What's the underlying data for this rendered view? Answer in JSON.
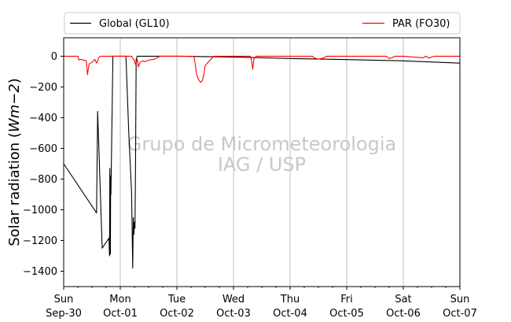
{
  "chart_data": {
    "type": "line",
    "title": "",
    "xlabel": "",
    "ylabel": "Solar radiation (Wm−2)",
    "ylabel_parts": {
      "prefix": "Solar radiation (",
      "math": "Wm−2",
      "suffix": ")"
    },
    "xlim": [
      0,
      7
    ],
    "ylim": [
      -1500,
      120
    ],
    "grid": "vertical-major",
    "legend_placement": "top, above plot",
    "yticks": [
      {
        "value": 0,
        "label": "0"
      },
      {
        "value": -200,
        "label": "−200"
      },
      {
        "value": -400,
        "label": "−400"
      },
      {
        "value": -600,
        "label": "−600"
      },
      {
        "value": -800,
        "label": "−800"
      },
      {
        "value": -1000,
        "label": "−1000"
      },
      {
        "value": -1200,
        "label": "−1200"
      },
      {
        "value": -1400,
        "label": "−1400"
      }
    ],
    "xticks": [
      {
        "value": 0,
        "day": "Sun",
        "date": "Sep-30"
      },
      {
        "value": 1,
        "day": "Mon",
        "date": "Oct-01"
      },
      {
        "value": 2,
        "day": "Tue",
        "date": "Oct-02"
      },
      {
        "value": 3,
        "day": "Wed",
        "date": "Oct-03"
      },
      {
        "value": 4,
        "day": "Thu",
        "date": "Oct-04"
      },
      {
        "value": 5,
        "day": "Fri",
        "date": "Oct-05"
      },
      {
        "value": 6,
        "day": "Sat",
        "date": "Oct-06"
      },
      {
        "value": 7,
        "day": "Sun",
        "date": "Oct-07"
      }
    ],
    "minor_ticks_per_day": 4,
    "watermark": [
      "Grupo de Micrometeorologia",
      "IAG / USP"
    ],
    "series": [
      {
        "name": "Global (GL10)",
        "color": "#000000",
        "points": [
          [
            0.0,
            -700
          ],
          [
            0.58,
            -1020
          ],
          [
            0.6,
            -360
          ],
          [
            0.68,
            -1250
          ],
          [
            0.8,
            -1185
          ],
          [
            0.81,
            -1300
          ],
          [
            0.815,
            -730
          ],
          [
            0.825,
            -1290
          ],
          [
            0.83,
            -780
          ],
          [
            0.835,
            -900
          ],
          [
            0.87,
            0
          ],
          [
            0.9,
            0
          ],
          [
            0.95,
            0
          ],
          [
            1.0,
            0
          ],
          [
            1.1,
            0
          ],
          [
            1.15,
            -500
          ],
          [
            1.2,
            -890
          ],
          [
            1.22,
            -1380
          ],
          [
            1.23,
            -1050
          ],
          [
            1.24,
            -1160
          ],
          [
            1.25,
            -1080
          ],
          [
            1.26,
            -1120
          ],
          [
            1.27,
            -700
          ],
          [
            1.28,
            -20
          ],
          [
            1.3,
            0
          ],
          [
            2.0,
            0
          ],
          [
            3.0,
            -5
          ],
          [
            4.0,
            -15
          ],
          [
            5.0,
            -22
          ],
          [
            6.0,
            -30
          ],
          [
            7.0,
            -45
          ]
        ]
      },
      {
        "name": "PAR (FO30)",
        "color": "#ff0000",
        "points": [
          [
            0.0,
            0
          ],
          [
            0.25,
            0
          ],
          [
            0.27,
            -25
          ],
          [
            0.3,
            -20
          ],
          [
            0.4,
            -30
          ],
          [
            0.42,
            -120
          ],
          [
            0.45,
            -50
          ],
          [
            0.5,
            -40
          ],
          [
            0.55,
            -20
          ],
          [
            0.58,
            -45
          ],
          [
            0.6,
            -30
          ],
          [
            0.62,
            -10
          ],
          [
            0.65,
            0
          ],
          [
            1.0,
            0
          ],
          [
            1.2,
            0
          ],
          [
            1.25,
            -30
          ],
          [
            1.27,
            -55
          ],
          [
            1.3,
            -20
          ],
          [
            1.32,
            -70
          ],
          [
            1.35,
            -40
          ],
          [
            1.4,
            -30
          ],
          [
            1.45,
            -35
          ],
          [
            1.5,
            -25
          ],
          [
            1.6,
            -20
          ],
          [
            1.65,
            -10
          ],
          [
            1.7,
            0
          ],
          [
            2.0,
            0
          ],
          [
            2.3,
            0
          ],
          [
            2.32,
            -40
          ],
          [
            2.35,
            -120
          ],
          [
            2.38,
            -150
          ],
          [
            2.42,
            -170
          ],
          [
            2.45,
            -160
          ],
          [
            2.48,
            -110
          ],
          [
            2.5,
            -60
          ],
          [
            2.55,
            -40
          ],
          [
            2.6,
            -20
          ],
          [
            2.65,
            0
          ],
          [
            3.0,
            0
          ],
          [
            3.3,
            0
          ],
          [
            3.32,
            -30
          ],
          [
            3.34,
            -85
          ],
          [
            3.36,
            -20
          ],
          [
            3.4,
            0
          ],
          [
            4.0,
            0
          ],
          [
            4.4,
            0
          ],
          [
            4.42,
            -10
          ],
          [
            4.5,
            -20
          ],
          [
            4.6,
            -10
          ],
          [
            4.65,
            0
          ],
          [
            5.0,
            0
          ],
          [
            5.7,
            0
          ],
          [
            5.75,
            -15
          ],
          [
            5.8,
            -10
          ],
          [
            5.85,
            0
          ],
          [
            6.0,
            0
          ],
          [
            6.35,
            -10
          ],
          [
            6.4,
            0
          ],
          [
            6.45,
            -12
          ],
          [
            6.5,
            -5
          ],
          [
            6.55,
            0
          ],
          [
            7.0,
            0
          ]
        ]
      }
    ]
  }
}
